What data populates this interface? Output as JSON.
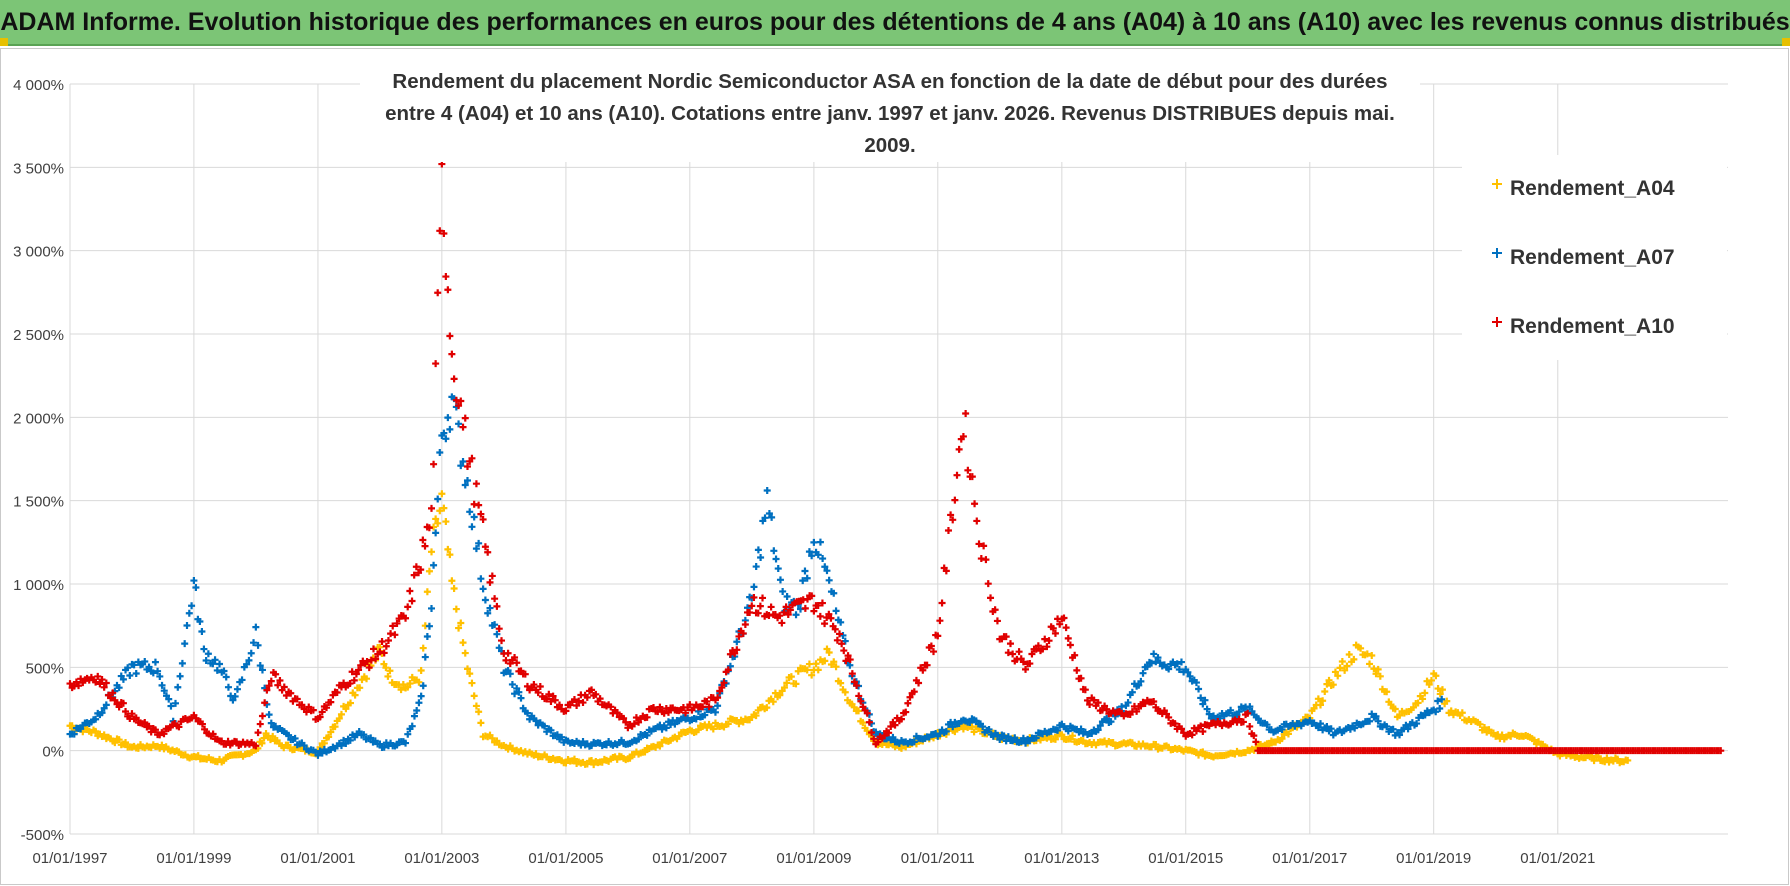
{
  "banner": {
    "title": "ADAM Informe. Evolution historique des performances en euros pour des détentions de 4 ans (A04) à 10 ans (A10) avec les revenus connus distribués"
  },
  "colors": {
    "banner_bg": "#7cc576",
    "a04": "#FFC000",
    "a07": "#0070C0",
    "a10": "#E00000",
    "grid": "#d9d9d9"
  },
  "chart_data": {
    "type": "scatter",
    "title_line1": "Rendement du placement Nordic Semiconductor ASA en fonction de la date de début pour des durées",
    "title_line2": "entre 4 (A04) et 10 ans (A10). Cotations entre janv. 1997 et janv. 2026. Revenus DISTRIBUES depuis mai. 2009.",
    "xlabel": "",
    "ylabel": "",
    "x_range": [
      "1997-01-01",
      "2023-10-01"
    ],
    "x_ticks": [
      "01/01/1997",
      "01/01/1999",
      "01/01/2001",
      "01/01/2003",
      "01/01/2005",
      "01/01/2007",
      "01/01/2009",
      "01/01/2011",
      "01/01/2013",
      "01/01/2015",
      "01/01/2017",
      "01/01/2019",
      "01/01/2021"
    ],
    "y_ticks": [
      "-500%",
      "0%",
      "500%",
      "1 000%",
      "1 500%",
      "2 000%",
      "2 500%",
      "3 000%",
      "3 500%",
      "4 000%"
    ],
    "ylim": [
      -500,
      4000
    ],
    "grid": true,
    "legend_position": "top-right",
    "series": [
      {
        "name": "Rendement_A04",
        "marker": "+",
        "points": [
          [
            "1997-01-01",
            150
          ],
          [
            "1997-06-01",
            110
          ],
          [
            "1998-01-01",
            20
          ],
          [
            "1998-06-01",
            30
          ],
          [
            "1999-01-01",
            -40
          ],
          [
            "1999-06-01",
            -60
          ],
          [
            "2000-01-01",
            0
          ],
          [
            "2000-03-01",
            100
          ],
          [
            "2000-06-01",
            30
          ],
          [
            "2001-01-01",
            -10
          ],
          [
            "2001-06-01",
            250
          ],
          [
            "2001-10-01",
            450
          ],
          [
            "2002-01-01",
            600
          ],
          [
            "2002-03-01",
            450
          ],
          [
            "2002-06-01",
            380
          ],
          [
            "2002-09-01",
            450
          ],
          [
            "2002-11-01",
            1200
          ],
          [
            "2003-01-01",
            1500
          ],
          [
            "2003-03-01",
            1000
          ],
          [
            "2003-06-01",
            500
          ],
          [
            "2003-09-01",
            100
          ],
          [
            "2004-01-01",
            30
          ],
          [
            "2004-06-01",
            -20
          ],
          [
            "2005-01-01",
            -60
          ],
          [
            "2005-06-01",
            -70
          ],
          [
            "2006-01-01",
            -40
          ],
          [
            "2006-06-01",
            20
          ],
          [
            "2007-01-01",
            120
          ],
          [
            "2007-06-01",
            150
          ],
          [
            "2008-01-01",
            200
          ],
          [
            "2008-06-01",
            350
          ],
          [
            "2008-10-01",
            450
          ],
          [
            "2009-01-01",
            500
          ],
          [
            "2009-04-01",
            580
          ],
          [
            "2009-08-01",
            300
          ],
          [
            "2010-01-01",
            50
          ],
          [
            "2010-06-01",
            20
          ],
          [
            "2011-01-01",
            100
          ],
          [
            "2011-06-01",
            150
          ],
          [
            "2012-01-01",
            80
          ],
          [
            "2012-06-01",
            60
          ],
          [
            "2013-01-01",
            90
          ],
          [
            "2013-06-01",
            50
          ],
          [
            "2014-01-01",
            40
          ],
          [
            "2014-06-01",
            30
          ],
          [
            "2015-01-01",
            0
          ],
          [
            "2015-06-01",
            -30
          ],
          [
            "2016-01-01",
            0
          ],
          [
            "2016-06-01",
            50
          ],
          [
            "2017-01-01",
            200
          ],
          [
            "2017-06-01",
            450
          ],
          [
            "2017-10-01",
            600
          ],
          [
            "2018-01-01",
            550
          ],
          [
            "2018-06-01",
            200
          ],
          [
            "2018-10-01",
            300
          ],
          [
            "2019-01-01",
            450
          ],
          [
            "2019-04-01",
            250
          ],
          [
            "2019-10-01",
            150
          ],
          [
            "2020-01-01",
            80
          ],
          [
            "2020-06-01",
            100
          ],
          [
            "2021-01-01",
            -20
          ],
          [
            "2021-06-01",
            -40
          ],
          [
            "2022-01-01",
            -60
          ],
          [
            "2022-03-01",
            -60
          ]
        ]
      },
      {
        "name": "Rendement_A07",
        "marker": "+",
        "points": [
          [
            "1997-01-01",
            100
          ],
          [
            "1997-06-01",
            200
          ],
          [
            "1998-01-01",
            500
          ],
          [
            "1998-06-01",
            500
          ],
          [
            "1998-09-01",
            200
          ],
          [
            "1999-01-01",
            1000
          ],
          [
            "1999-03-01",
            600
          ],
          [
            "1999-06-01",
            500
          ],
          [
            "1999-09-01",
            300
          ],
          [
            "2000-01-01",
            700
          ],
          [
            "2000-04-01",
            150
          ],
          [
            "2000-09-01",
            50
          ],
          [
            "2001-01-01",
            -20
          ],
          [
            "2001-06-01",
            50
          ],
          [
            "2001-09-01",
            100
          ],
          [
            "2002-01-01",
            30
          ],
          [
            "2002-06-01",
            50
          ],
          [
            "2002-09-01",
            300
          ],
          [
            "2002-11-01",
            900
          ],
          [
            "2003-01-01",
            1900
          ],
          [
            "2003-03-01",
            2100
          ],
          [
            "2003-06-01",
            1600
          ],
          [
            "2003-09-01",
            1000
          ],
          [
            "2004-01-01",
            500
          ],
          [
            "2004-06-01",
            200
          ],
          [
            "2005-01-01",
            50
          ],
          [
            "2005-06-01",
            40
          ],
          [
            "2006-01-01",
            50
          ],
          [
            "2006-06-01",
            120
          ],
          [
            "2007-01-01",
            200
          ],
          [
            "2007-06-01",
            250
          ],
          [
            "2008-01-01",
            900
          ],
          [
            "2008-04-01",
            1500
          ],
          [
            "2008-07-01",
            900
          ],
          [
            "2008-10-01",
            850
          ],
          [
            "2009-01-01",
            1300
          ],
          [
            "2009-04-01",
            1000
          ],
          [
            "2009-08-01",
            500
          ],
          [
            "2010-01-01",
            100
          ],
          [
            "2010-06-01",
            50
          ],
          [
            "2011-01-01",
            100
          ],
          [
            "2011-06-01",
            200
          ],
          [
            "2012-01-01",
            80
          ],
          [
            "2012-06-01",
            60
          ],
          [
            "2013-01-01",
            150
          ],
          [
            "2013-06-01",
            100
          ],
          [
            "2014-01-01",
            250
          ],
          [
            "2014-06-01",
            550
          ],
          [
            "2015-01-01",
            500
          ],
          [
            "2015-06-01",
            200
          ],
          [
            "2016-01-01",
            250
          ],
          [
            "2016-06-01",
            120
          ],
          [
            "2017-01-01",
            180
          ],
          [
            "2017-06-01",
            100
          ],
          [
            "2018-01-01",
            200
          ],
          [
            "2018-06-01",
            100
          ],
          [
            "2019-01-01",
            250
          ],
          [
            "2019-03-01",
            300
          ]
        ]
      },
      {
        "name": "Rendement_A10",
        "marker": "+",
        "points": [
          [
            "1997-01-01",
            400
          ],
          [
            "1997-06-01",
            450
          ],
          [
            "1998-01-01",
            200
          ],
          [
            "1998-06-01",
            100
          ],
          [
            "1999-01-01",
            200
          ],
          [
            "1999-06-01",
            50
          ],
          [
            "2000-01-01",
            40
          ],
          [
            "2000-04-01",
            450
          ],
          [
            "2000-09-01",
            300
          ],
          [
            "2001-01-01",
            200
          ],
          [
            "2001-06-01",
            400
          ],
          [
            "2002-01-01",
            600
          ],
          [
            "2002-06-01",
            800
          ],
          [
            "2002-11-01",
            1400
          ],
          [
            "2003-01-01",
            3400
          ],
          [
            "2003-03-01",
            2400
          ],
          [
            "2003-06-01",
            1800
          ],
          [
            "2003-09-01",
            1300
          ],
          [
            "2004-01-01",
            600
          ],
          [
            "2004-06-01",
            400
          ],
          [
            "2005-01-01",
            250
          ],
          [
            "2005-06-01",
            350
          ],
          [
            "2006-01-01",
            150
          ],
          [
            "2006-06-01",
            250
          ],
          [
            "2007-01-01",
            250
          ],
          [
            "2007-06-01",
            300
          ],
          [
            "2008-01-01",
            900
          ],
          [
            "2008-06-01",
            800
          ],
          [
            "2009-01-01",
            900
          ],
          [
            "2009-06-01",
            700
          ],
          [
            "2010-01-01",
            50
          ],
          [
            "2010-06-01",
            200
          ],
          [
            "2011-01-01",
            700
          ],
          [
            "2011-06-01",
            2000
          ],
          [
            "2011-09-01",
            1300
          ],
          [
            "2012-01-01",
            700
          ],
          [
            "2012-06-01",
            500
          ],
          [
            "2013-01-01",
            800
          ],
          [
            "2013-06-01",
            300
          ],
          [
            "2014-01-01",
            200
          ],
          [
            "2014-06-01",
            300
          ],
          [
            "2015-01-01",
            100
          ],
          [
            "2015-06-01",
            150
          ],
          [
            "2016-01-01",
            200
          ],
          [
            "2016-03-01",
            0
          ],
          [
            "2017-01-01",
            0
          ],
          [
            "2018-01-01",
            0
          ],
          [
            "2019-01-01",
            0
          ],
          [
            "2020-01-01",
            0
          ],
          [
            "2021-01-01",
            0
          ],
          [
            "2022-01-01",
            0
          ],
          [
            "2023-01-01",
            0
          ],
          [
            "2023-09-01",
            0
          ]
        ]
      }
    ]
  }
}
